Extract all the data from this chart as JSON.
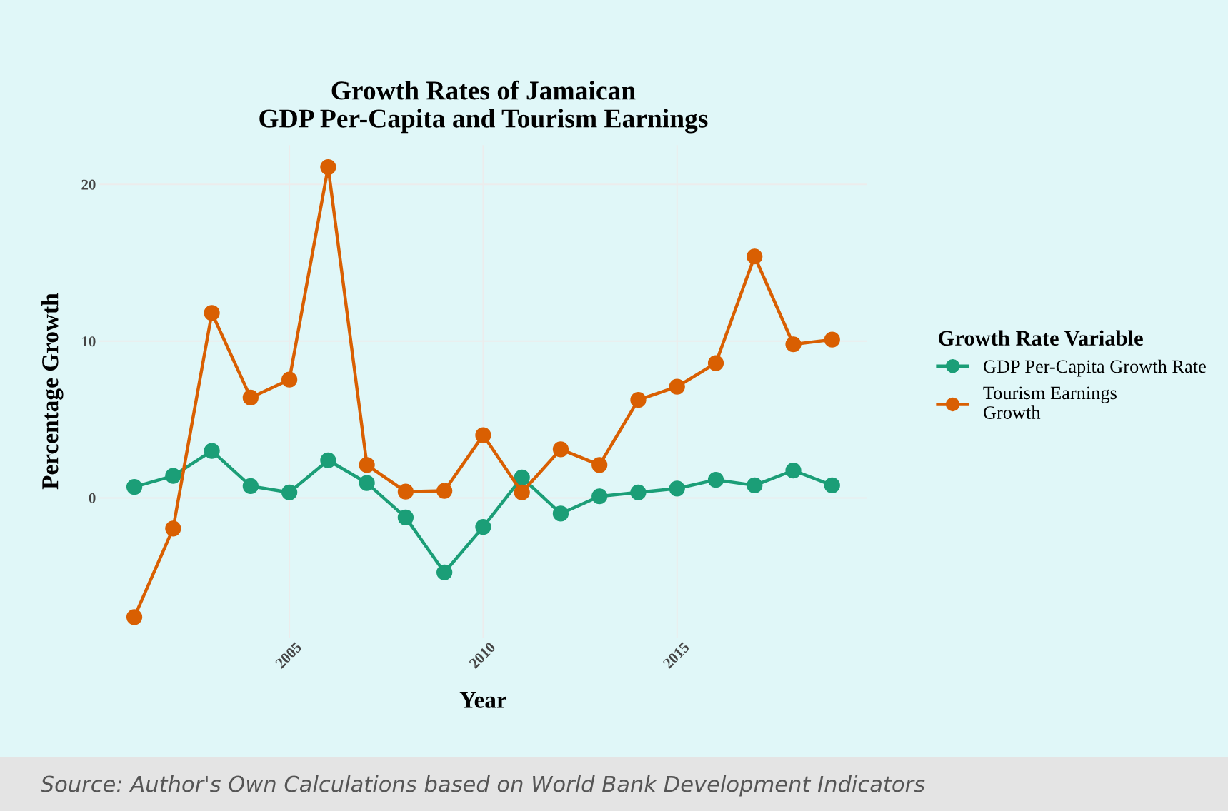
{
  "chart_data": {
    "type": "line",
    "title": "Growth Rates of Jamaican\nGDP Per-Capita and Tourism Earnings",
    "xlabel": "Year",
    "ylabel": "Percentage Growth",
    "legend_title": "Growth Rate Variable",
    "x": [
      2001,
      2002,
      2003,
      2004,
      2005,
      2006,
      2007,
      2008,
      2009,
      2010,
      2011,
      2012,
      2013,
      2014,
      2015,
      2016,
      2017,
      2018,
      2019
    ],
    "series": [
      {
        "name": "GDP Per-Capita Growth Rate",
        "color": "#1b9e77",
        "values": [
          0.7,
          1.4,
          3.0,
          0.75,
          0.35,
          2.4,
          0.95,
          -1.25,
          -4.75,
          -1.85,
          1.3,
          -1.0,
          0.1,
          0.35,
          0.6,
          1.15,
          0.8,
          1.75,
          0.8
        ]
      },
      {
        "name": "Tourism Earnings\nGrowth",
        "color": "#d95f02",
        "values": [
          -7.6,
          -1.95,
          11.8,
          6.4,
          7.55,
          21.1,
          2.1,
          0.4,
          0.45,
          4.0,
          0.35,
          3.1,
          2.1,
          6.25,
          7.1,
          8.6,
          15.4,
          9.8,
          10.1
        ]
      }
    ],
    "xlim": [
      2000.1,
      2019.9
    ],
    "xticks": [
      2005,
      2010,
      2015
    ],
    "ylim": [
      -8.9,
      22.5
    ],
    "yticks": [
      0,
      10,
      20
    ],
    "grid": true,
    "legend": "right",
    "marker": "circle",
    "line_style": "solid",
    "annotations": [
      "Source: Author's Own Calculations based on World Bank Development Indicators"
    ]
  }
}
